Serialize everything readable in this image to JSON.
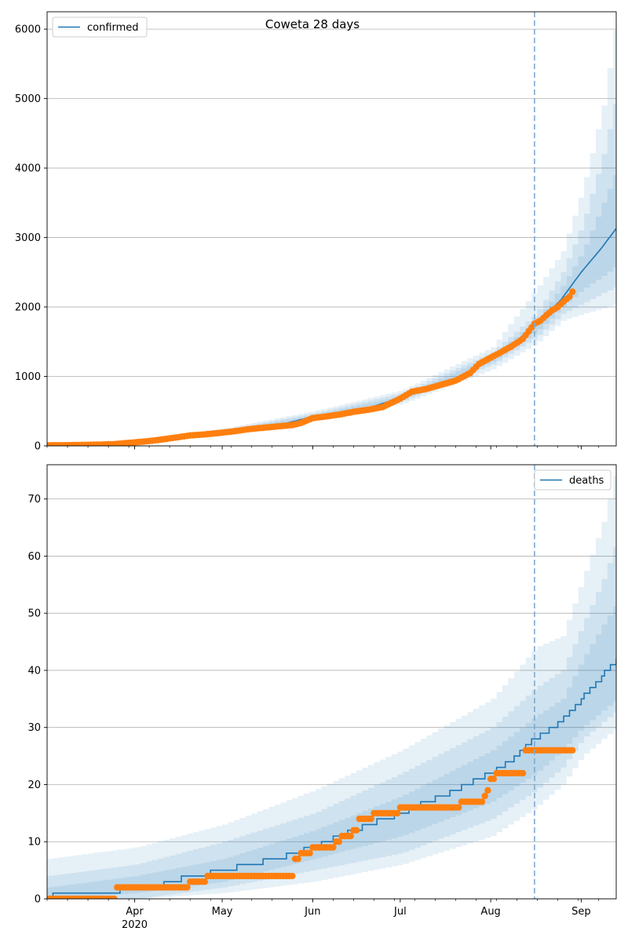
{
  "chart_data": [
    {
      "type": "line",
      "title": "Coweta 28 days",
      "legend": {
        "label": "confirmed",
        "position": "top-left"
      },
      "xlim": [
        "2020-03-02",
        "2020-09-13"
      ],
      "ylim": [
        0,
        6250
      ],
      "yticks": [
        0,
        1000,
        2000,
        3000,
        4000,
        5000,
        6000
      ],
      "grid": "horizontal",
      "forecast_start": "2020-08-16",
      "colors": {
        "line": "#1f77b4",
        "points": "#ff7f0e",
        "band": "#1f77b4",
        "vline": "#7fa9cf"
      },
      "model": [
        [
          "2020-03-02",
          10
        ],
        [
          "2020-03-20",
          18
        ],
        [
          "2020-04-01",
          55
        ],
        [
          "2020-04-10",
          100
        ],
        [
          "2020-04-20",
          155
        ],
        [
          "2020-05-01",
          200
        ],
        [
          "2020-05-10",
          250
        ],
        [
          "2020-05-20",
          295
        ],
        [
          "2020-06-01",
          420
        ],
        [
          "2020-06-10",
          470
        ],
        [
          "2020-06-20",
          545
        ],
        [
          "2020-07-01",
          690
        ],
        [
          "2020-07-10",
          810
        ],
        [
          "2020-07-20",
          950
        ],
        [
          "2020-08-01",
          1250
        ],
        [
          "2020-08-10",
          1520
        ],
        [
          "2020-08-16",
          1720
        ],
        [
          "2020-08-25",
          2100
        ],
        [
          "2020-09-01",
          2500
        ],
        [
          "2020-09-08",
          2850
        ],
        [
          "2020-09-13",
          3130
        ]
      ],
      "bands": [
        {
          "lower": [
            [
              2020,
              0
            ]
          ],
          "note": ""
        }
      ],
      "band_sets": [
        {
          "x": [
            "2020-03-02",
            "2020-04-01",
            "2020-05-01",
            "2020-06-01",
            "2020-07-01",
            "2020-08-01",
            "2020-08-16",
            "2020-08-25",
            "2020-09-01",
            "2020-09-08",
            "2020-09-13"
          ],
          "lower": [
            0,
            30,
            160,
            360,
            600,
            1100,
            1470,
            1800,
            1900,
            1980,
            2050
          ],
          "upper": [
            20,
            80,
            250,
            500,
            800,
            1420,
            2250,
            2800,
            3700,
            4900,
            6250
          ]
        },
        {
          "x": [
            "2020-03-02",
            "2020-04-01",
            "2020-05-01",
            "2020-06-01",
            "2020-07-01",
            "2020-08-01",
            "2020-08-16",
            "2020-08-25",
            "2020-09-01",
            "2020-09-08",
            "2020-09-13"
          ],
          "lower": [
            2,
            40,
            175,
            385,
            640,
            1170,
            1560,
            1900,
            2050,
            2200,
            2300
          ],
          "upper": [
            16,
            70,
            230,
            470,
            760,
            1350,
            1900,
            2500,
            3200,
            4200,
            5100
          ]
        },
        {
          "x": [
            "2020-03-02",
            "2020-04-01",
            "2020-05-01",
            "2020-06-01",
            "2020-07-01",
            "2020-08-01",
            "2020-08-16",
            "2020-08-25",
            "2020-09-01",
            "2020-09-08",
            "2020-09-13"
          ],
          "lower": [
            5,
            48,
            188,
            405,
            670,
            1210,
            1640,
            2000,
            2250,
            2450,
            2600
          ],
          "upper": [
            14,
            62,
            215,
            445,
            720,
            1300,
            1800,
            2300,
            2800,
            3500,
            4000
          ]
        }
      ],
      "observed": [
        [
          "2020-03-02",
          8
        ],
        [
          "2020-03-10",
          10
        ],
        [
          "2020-03-20",
          18
        ],
        [
          "2020-03-25",
          25
        ],
        [
          "2020-04-01",
          50
        ],
        [
          "2020-04-05",
          65
        ],
        [
          "2020-04-10",
          90
        ],
        [
          "2020-04-15",
          120
        ],
        [
          "2020-04-20",
          150
        ],
        [
          "2020-04-25",
          165
        ],
        [
          "2020-05-01",
          190
        ],
        [
          "2020-05-05",
          210
        ],
        [
          "2020-05-10",
          240
        ],
        [
          "2020-05-15",
          260
        ],
        [
          "2020-05-20",
          280
        ],
        [
          "2020-05-25",
          300
        ],
        [
          "2020-05-28",
          330
        ],
        [
          "2020-06-01",
          400
        ],
        [
          "2020-06-05",
          420
        ],
        [
          "2020-06-10",
          450
        ],
        [
          "2020-06-15",
          490
        ],
        [
          "2020-06-20",
          520
        ],
        [
          "2020-06-25",
          560
        ],
        [
          "2020-07-01",
          680
        ],
        [
          "2020-07-05",
          780
        ],
        [
          "2020-07-10",
          820
        ],
        [
          "2020-07-15",
          880
        ],
        [
          "2020-07-20",
          940
        ],
        [
          "2020-07-25",
          1050
        ],
        [
          "2020-07-28",
          1180
        ],
        [
          "2020-08-01",
          1270
        ],
        [
          "2020-08-05",
          1360
        ],
        [
          "2020-08-08",
          1430
        ],
        [
          "2020-08-12",
          1540
        ],
        [
          "2020-08-14",
          1650
        ],
        [
          "2020-08-16",
          1760
        ],
        [
          "2020-08-18",
          1800
        ],
        [
          "2020-08-20",
          1880
        ],
        [
          "2020-08-22",
          1950
        ],
        [
          "2020-08-24",
          2000
        ],
        [
          "2020-08-26",
          2080
        ],
        [
          "2020-08-28",
          2150
        ],
        [
          "2020-08-29",
          2220
        ]
      ]
    },
    {
      "type": "line",
      "title": "",
      "legend": {
        "label": "deaths",
        "position": "top-right"
      },
      "xlim": [
        "2020-03-02",
        "2020-09-13"
      ],
      "ylim": [
        0,
        76
      ],
      "yticks": [
        0,
        10,
        20,
        30,
        40,
        50,
        60,
        70
      ],
      "xticks": [
        {
          "date": "2020-04-01",
          "label": "Apr",
          "sublabel": "2020"
        },
        {
          "date": "2020-05-01",
          "label": "May",
          "sublabel": ""
        },
        {
          "date": "2020-06-01",
          "label": "Jun",
          "sublabel": ""
        },
        {
          "date": "2020-07-01",
          "label": "Jul",
          "sublabel": ""
        },
        {
          "date": "2020-08-01",
          "label": "Aug",
          "sublabel": ""
        },
        {
          "date": "2020-09-01",
          "label": "Sep",
          "sublabel": ""
        }
      ],
      "grid": "horizontal",
      "forecast_start": "2020-08-16",
      "colors": {
        "line": "#1f77b4",
        "points": "#ff7f0e",
        "band": "#1f77b4",
        "vline": "#7fa9cf"
      },
      "model": [
        [
          "2020-03-02",
          0
        ],
        [
          "2020-03-05",
          1
        ],
        [
          "2020-03-25",
          1
        ],
        [
          "2020-03-28",
          2
        ],
        [
          "2020-04-10",
          2
        ],
        [
          "2020-04-12",
          3
        ],
        [
          "2020-04-22",
          4
        ],
        [
          "2020-05-01",
          5
        ],
        [
          "2020-05-10",
          6
        ],
        [
          "2020-05-20",
          7
        ],
        [
          "2020-06-01",
          9
        ],
        [
          "2020-06-10",
          11
        ],
        [
          "2020-06-20",
          13
        ],
        [
          "2020-07-01",
          15
        ],
        [
          "2020-07-10",
          17
        ],
        [
          "2020-07-20",
          19
        ],
        [
          "2020-08-01",
          22
        ],
        [
          "2020-08-10",
          25
        ],
        [
          "2020-08-16",
          28
        ],
        [
          "2020-08-25",
          31
        ],
        [
          "2020-09-01",
          35
        ],
        [
          "2020-09-08",
          39
        ],
        [
          "2020-09-13",
          42
        ]
      ],
      "band_sets": [
        {
          "x": [
            "2020-03-02",
            "2020-04-01",
            "2020-05-01",
            "2020-06-01",
            "2020-07-01",
            "2020-08-01",
            "2020-08-16",
            "2020-08-25",
            "2020-09-01",
            "2020-09-08",
            "2020-09-13"
          ],
          "lower": [
            0,
            0,
            1,
            3,
            6,
            11,
            16,
            20,
            25,
            28,
            30
          ],
          "upper": [
            7,
            9,
            13,
            19,
            26,
            35,
            44,
            46,
            56,
            66,
            76
          ]
        },
        {
          "x": [
            "2020-03-02",
            "2020-04-01",
            "2020-05-01",
            "2020-06-01",
            "2020-07-01",
            "2020-08-01",
            "2020-08-16",
            "2020-08-25",
            "2020-09-01",
            "2020-09-08",
            "2020-09-13"
          ],
          "lower": [
            0,
            0,
            2,
            5,
            8,
            14,
            19,
            23,
            28,
            31,
            33
          ],
          "upper": [
            4,
            6,
            10,
            15,
            22,
            30,
            37,
            40,
            48,
            56,
            63
          ]
        },
        {
          "x": [
            "2020-03-02",
            "2020-04-01",
            "2020-05-01",
            "2020-06-01",
            "2020-07-01",
            "2020-08-01",
            "2020-08-16",
            "2020-08-25",
            "2020-09-01",
            "2020-09-08",
            "2020-09-13"
          ],
          "lower": [
            0,
            1,
            3,
            7,
            11,
            17,
            22,
            26,
            30,
            33,
            35
          ],
          "upper": [
            2,
            4,
            7,
            12,
            18,
            26,
            32,
            35,
            42,
            48,
            52
          ]
        }
      ],
      "observed": [
        [
          "2020-03-02",
          0
        ],
        [
          "2020-03-10",
          0
        ],
        [
          "2020-03-20",
          0
        ],
        [
          "2020-03-24",
          0
        ],
        [
          "2020-03-26",
          2
        ],
        [
          "2020-04-05",
          2
        ],
        [
          "2020-04-15",
          2
        ],
        [
          "2020-04-20",
          3
        ],
        [
          "2020-04-24",
          3
        ],
        [
          "2020-04-26",
          4
        ],
        [
          "2020-05-05",
          4
        ],
        [
          "2020-05-15",
          4
        ],
        [
          "2020-05-25",
          4
        ],
        [
          "2020-05-26",
          7
        ],
        [
          "2020-05-28",
          8
        ],
        [
          "2020-05-31",
          8
        ],
        [
          "2020-06-01",
          9
        ],
        [
          "2020-06-08",
          9
        ],
        [
          "2020-06-09",
          10
        ],
        [
          "2020-06-11",
          11
        ],
        [
          "2020-06-15",
          12
        ],
        [
          "2020-06-17",
          14
        ],
        [
          "2020-06-21",
          14
        ],
        [
          "2020-06-22",
          15
        ],
        [
          "2020-06-30",
          15
        ],
        [
          "2020-07-01",
          16
        ],
        [
          "2020-07-15",
          16
        ],
        [
          "2020-07-20",
          16
        ],
        [
          "2020-07-22",
          17
        ],
        [
          "2020-07-28",
          17
        ],
        [
          "2020-07-30",
          18
        ],
        [
          "2020-07-31",
          19
        ],
        [
          "2020-08-01",
          21
        ],
        [
          "2020-08-03",
          22
        ],
        [
          "2020-08-12",
          22
        ],
        [
          "2020-08-13",
          26
        ],
        [
          "2020-08-20",
          26
        ],
        [
          "2020-08-25",
          26
        ],
        [
          "2020-08-29",
          26
        ]
      ]
    }
  ]
}
